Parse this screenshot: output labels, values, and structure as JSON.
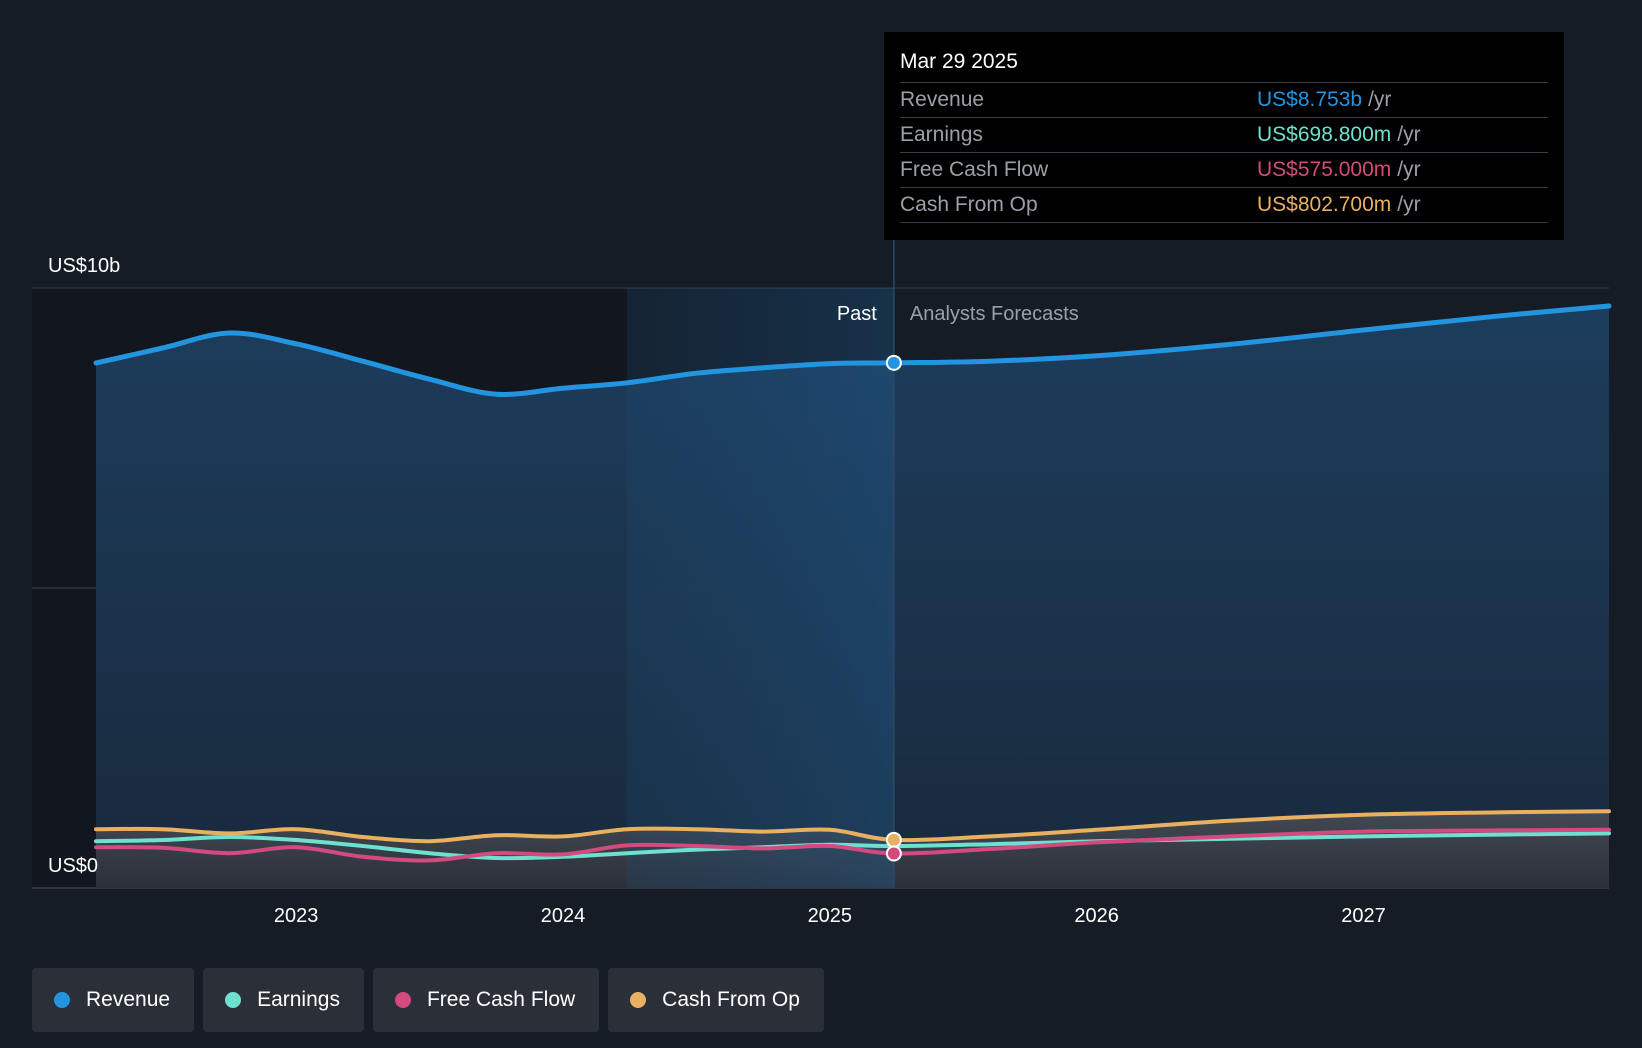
{
  "colors": {
    "background": "#161c25",
    "revenue": "#2394df",
    "earnings": "#6ee0cf",
    "free_cash_flow": "#d34a7f",
    "cash_from_op": "#e8b060"
  },
  "tooltip": {
    "date": "Mar 29 2025",
    "rows": [
      {
        "label": "Revenue",
        "value": "US$8.753b",
        "unit": "/yr",
        "color": "#2394df"
      },
      {
        "label": "Earnings",
        "value": "US$698.800m",
        "unit": "/yr",
        "color": "#6ee0cf"
      },
      {
        "label": "Free Cash Flow",
        "value": "US$575.000m",
        "unit": "/yr",
        "color": "#d34a7f"
      },
      {
        "label": "Cash From Op",
        "value": "US$802.700m",
        "unit": "/yr",
        "color": "#e8b060"
      }
    ]
  },
  "legend": [
    {
      "label": "Revenue",
      "color": "#2394df"
    },
    {
      "label": "Earnings",
      "color": "#6ee0cf"
    },
    {
      "label": "Free Cash Flow",
      "color": "#d34a7f"
    },
    {
      "label": "Cash From Op",
      "color": "#e8b060"
    }
  ],
  "chart_data": {
    "type": "area",
    "y_axis_labels": [
      "US$10b",
      "US$0"
    ],
    "ylim": [
      0,
      10
    ],
    "y_unit": "US$ billions",
    "xlim": [
      2022.25,
      2027.92
    ],
    "x_ticks": [
      2023,
      2024,
      2025,
      2026,
      2027
    ],
    "past_label": "Past",
    "forecast_label": "Analysts Forecasts",
    "divider_x": 2025.24,
    "highlight_start_x": 2024.24,
    "grid": true,
    "legend_position": "bottom",
    "series": [
      {
        "name": "Revenue",
        "color": "#2394df",
        "x": [
          2022.25,
          2022.5,
          2022.75,
          2023.0,
          2023.25,
          2023.5,
          2023.75,
          2024.0,
          2024.24,
          2024.5,
          2024.75,
          2025.0,
          2025.24,
          2025.6,
          2026.0,
          2026.5,
          2027.0,
          2027.5,
          2027.92
        ],
        "y": [
          8.75,
          9.0,
          9.25,
          9.07,
          8.78,
          8.48,
          8.23,
          8.33,
          8.42,
          8.58,
          8.67,
          8.74,
          8.753,
          8.78,
          8.87,
          9.06,
          9.3,
          9.53,
          9.7
        ]
      },
      {
        "name": "Earnings",
        "color": "#6ee0cf",
        "x": [
          2022.25,
          2022.5,
          2022.75,
          2023.0,
          2023.25,
          2023.5,
          2023.75,
          2024.0,
          2024.24,
          2024.5,
          2024.75,
          2025.0,
          2025.24,
          2025.6,
          2026.0,
          2026.5,
          2027.0,
          2027.5,
          2027.92
        ],
        "y": [
          0.78,
          0.8,
          0.85,
          0.8,
          0.7,
          0.58,
          0.5,
          0.52,
          0.58,
          0.64,
          0.68,
          0.72,
          0.6988,
          0.73,
          0.78,
          0.82,
          0.86,
          0.89,
          0.91
        ]
      },
      {
        "name": "Free Cash Flow",
        "color": "#d34a7f",
        "x": [
          2022.25,
          2022.5,
          2022.75,
          2023.0,
          2023.25,
          2023.5,
          2023.75,
          2024.0,
          2024.24,
          2024.5,
          2024.75,
          2025.0,
          2025.24,
          2025.6,
          2026.0,
          2026.5,
          2027.0,
          2027.5,
          2027.92
        ],
        "y": [
          0.68,
          0.67,
          0.58,
          0.68,
          0.52,
          0.46,
          0.58,
          0.56,
          0.71,
          0.7,
          0.66,
          0.7,
          0.575,
          0.65,
          0.76,
          0.86,
          0.94,
          0.96,
          0.97
        ]
      },
      {
        "name": "Cash From Op",
        "color": "#e8b060",
        "x": [
          2022.25,
          2022.5,
          2022.75,
          2023.0,
          2023.25,
          2023.5,
          2023.75,
          2024.0,
          2024.24,
          2024.5,
          2024.75,
          2025.0,
          2025.24,
          2025.6,
          2026.0,
          2026.5,
          2027.0,
          2027.5,
          2027.92
        ],
        "y": [
          0.98,
          0.98,
          0.91,
          0.98,
          0.85,
          0.78,
          0.88,
          0.86,
          0.98,
          0.98,
          0.94,
          0.97,
          0.8027,
          0.86,
          0.97,
          1.12,
          1.22,
          1.26,
          1.28
        ]
      }
    ]
  }
}
